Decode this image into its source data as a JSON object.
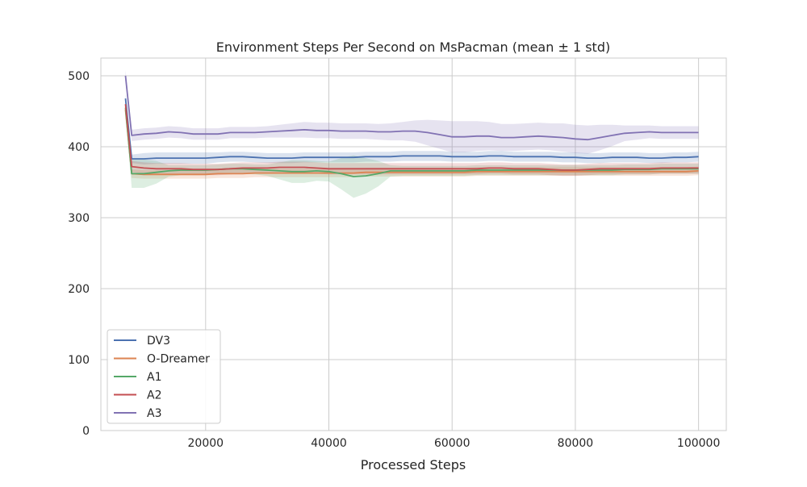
{
  "chart_data": {
    "type": "line",
    "title": "Environment Steps Per Second on MsPacman (mean ± 1 std)",
    "xlabel": "Processed Steps",
    "ylabel": "",
    "xlim": [
      3000,
      104500
    ],
    "ylim": [
      0,
      525
    ],
    "x_ticks": [
      20000,
      40000,
      60000,
      80000,
      100000
    ],
    "y_ticks": [
      0,
      100,
      200,
      300,
      400,
      500
    ],
    "grid": true,
    "legend_position": "lower-left",
    "colors": {
      "DV3": "#4c72b0",
      "O-Dreamer": "#dd8452",
      "A1": "#55a868",
      "A2": "#c44e52",
      "A3": "#8172b3"
    },
    "series": [
      {
        "name": "DV3",
        "x": [
          7000,
          8000,
          10000,
          12000,
          14000,
          16000,
          18000,
          20000,
          22000,
          24000,
          26000,
          28000,
          30000,
          32000,
          34000,
          36000,
          38000,
          40000,
          42000,
          44000,
          46000,
          48000,
          50000,
          52000,
          54000,
          56000,
          58000,
          60000,
          62000,
          64000,
          66000,
          68000,
          70000,
          72000,
          74000,
          76000,
          78000,
          80000,
          82000,
          84000,
          86000,
          88000,
          90000,
          92000,
          94000,
          96000,
          98000,
          100000
        ],
        "values": [
          468,
          383,
          383,
          384,
          384,
          384,
          384,
          384,
          385,
          386,
          386,
          385,
          384,
          384,
          384,
          385,
          385,
          385,
          385,
          385,
          386,
          386,
          386,
          387,
          387,
          387,
          387,
          386,
          386,
          386,
          387,
          387,
          386,
          386,
          386,
          386,
          385,
          385,
          384,
          384,
          385,
          385,
          385,
          384,
          384,
          385,
          385,
          386
        ],
        "std": [
          8,
          6,
          8,
          8,
          8,
          8,
          8,
          8,
          7,
          7,
          7,
          7,
          7,
          7,
          7,
          7,
          7,
          7,
          7,
          7,
          7,
          7,
          7,
          7,
          7,
          7,
          7,
          7,
          7,
          7,
          7,
          7,
          7,
          7,
          7,
          7,
          7,
          7,
          7,
          7,
          7,
          7,
          7,
          7,
          7,
          7,
          7,
          7
        ]
      },
      {
        "name": "O-Dreamer",
        "x": [
          7000,
          8000,
          10000,
          12000,
          14000,
          16000,
          18000,
          20000,
          22000,
          24000,
          26000,
          28000,
          30000,
          32000,
          34000,
          36000,
          38000,
          40000,
          42000,
          44000,
          46000,
          48000,
          50000,
          52000,
          54000,
          56000,
          58000,
          60000,
          62000,
          64000,
          66000,
          68000,
          70000,
          72000,
          74000,
          76000,
          78000,
          80000,
          82000,
          84000,
          86000,
          88000,
          90000,
          92000,
          94000,
          96000,
          98000,
          100000
        ],
        "values": [
          452,
          362,
          361,
          361,
          361,
          361,
          361,
          361,
          362,
          362,
          362,
          363,
          363,
          363,
          363,
          363,
          363,
          363,
          363,
          363,
          364,
          364,
          364,
          364,
          364,
          364,
          364,
          364,
          364,
          365,
          365,
          365,
          365,
          365,
          365,
          365,
          365,
          365,
          365,
          365,
          365,
          365,
          365,
          365,
          365,
          365,
          365,
          366
        ],
        "std": [
          8,
          6,
          6,
          6,
          6,
          6,
          6,
          6,
          6,
          6,
          6,
          6,
          6,
          6,
          6,
          6,
          6,
          6,
          6,
          6,
          6,
          6,
          6,
          6,
          6,
          6,
          6,
          6,
          6,
          6,
          6,
          6,
          6,
          6,
          6,
          6,
          6,
          6,
          6,
          6,
          6,
          6,
          6,
          6,
          6,
          6,
          6,
          6
        ]
      },
      {
        "name": "A1",
        "x": [
          7000,
          8000,
          10000,
          12000,
          14000,
          16000,
          18000,
          20000,
          22000,
          24000,
          26000,
          28000,
          30000,
          32000,
          34000,
          36000,
          38000,
          40000,
          42000,
          44000,
          46000,
          48000,
          50000,
          52000,
          54000,
          56000,
          58000,
          60000,
          62000,
          64000,
          66000,
          68000,
          70000,
          72000,
          74000,
          76000,
          78000,
          80000,
          82000,
          84000,
          86000,
          88000,
          90000,
          92000,
          94000,
          96000,
          98000,
          100000
        ],
        "values": [
          455,
          362,
          362,
          364,
          366,
          367,
          367,
          367,
          368,
          369,
          369,
          368,
          367,
          366,
          365,
          365,
          366,
          365,
          362,
          358,
          359,
          362,
          366,
          366,
          366,
          366,
          366,
          366,
          366,
          367,
          367,
          367,
          367,
          367,
          367,
          367,
          367,
          367,
          367,
          367,
          367,
          368,
          368,
          368,
          369,
          369,
          369,
          369
        ],
        "std": [
          8,
          20,
          20,
          16,
          8,
          7,
          7,
          7,
          7,
          7,
          7,
          7,
          8,
          12,
          16,
          16,
          14,
          14,
          22,
          30,
          25,
          18,
          8,
          7,
          7,
          7,
          7,
          7,
          7,
          7,
          7,
          7,
          7,
          7,
          7,
          7,
          7,
          7,
          7,
          7,
          7,
          7,
          7,
          7,
          7,
          7,
          7,
          7
        ]
      },
      {
        "name": "A2",
        "x": [
          7000,
          8000,
          10000,
          12000,
          14000,
          16000,
          18000,
          20000,
          22000,
          24000,
          26000,
          28000,
          30000,
          32000,
          34000,
          36000,
          38000,
          40000,
          42000,
          44000,
          46000,
          48000,
          50000,
          52000,
          54000,
          56000,
          58000,
          60000,
          62000,
          64000,
          66000,
          68000,
          70000,
          72000,
          74000,
          76000,
          78000,
          80000,
          82000,
          84000,
          86000,
          88000,
          90000,
          92000,
          94000,
          96000,
          98000,
          100000
        ],
        "values": [
          460,
          372,
          370,
          369,
          369,
          369,
          368,
          368,
          368,
          369,
          370,
          370,
          370,
          371,
          371,
          371,
          370,
          369,
          369,
          369,
          369,
          369,
          369,
          369,
          369,
          369,
          369,
          369,
          369,
          369,
          370,
          370,
          369,
          369,
          369,
          368,
          367,
          367,
          368,
          369,
          369,
          369,
          369,
          369,
          370,
          370,
          370,
          370
        ],
        "std": [
          8,
          8,
          8,
          8,
          8,
          8,
          8,
          8,
          8,
          8,
          8,
          8,
          8,
          8,
          8,
          8,
          8,
          8,
          8,
          8,
          8,
          8,
          8,
          8,
          8,
          8,
          8,
          8,
          8,
          8,
          8,
          8,
          8,
          8,
          8,
          8,
          8,
          8,
          8,
          8,
          8,
          8,
          8,
          8,
          8,
          8,
          8,
          8
        ]
      },
      {
        "name": "A3",
        "x": [
          7000,
          8000,
          10000,
          12000,
          14000,
          16000,
          18000,
          20000,
          22000,
          24000,
          26000,
          28000,
          30000,
          32000,
          34000,
          36000,
          38000,
          40000,
          42000,
          44000,
          46000,
          48000,
          50000,
          52000,
          54000,
          56000,
          58000,
          60000,
          62000,
          64000,
          66000,
          68000,
          70000,
          72000,
          74000,
          76000,
          78000,
          80000,
          82000,
          84000,
          86000,
          88000,
          90000,
          92000,
          94000,
          96000,
          98000,
          100000
        ],
        "values": [
          500,
          416,
          418,
          419,
          421,
          420,
          418,
          418,
          418,
          420,
          420,
          420,
          421,
          422,
          423,
          424,
          423,
          423,
          422,
          422,
          422,
          421,
          421,
          422,
          422,
          420,
          417,
          414,
          414,
          415,
          415,
          413,
          413,
          414,
          415,
          414,
          413,
          411,
          410,
          413,
          416,
          419,
          420,
          421,
          420,
          420,
          420,
          420
        ],
        "std": [
          8,
          8,
          8,
          8,
          8,
          8,
          8,
          8,
          8,
          8,
          8,
          8,
          8,
          9,
          10,
          11,
          11,
          11,
          11,
          11,
          11,
          11,
          12,
          13,
          15,
          18,
          20,
          22,
          22,
          21,
          20,
          19,
          19,
          19,
          19,
          19,
          20,
          20,
          20,
          18,
          15,
          11,
          10,
          9,
          9,
          9,
          9,
          9
        ]
      }
    ]
  }
}
